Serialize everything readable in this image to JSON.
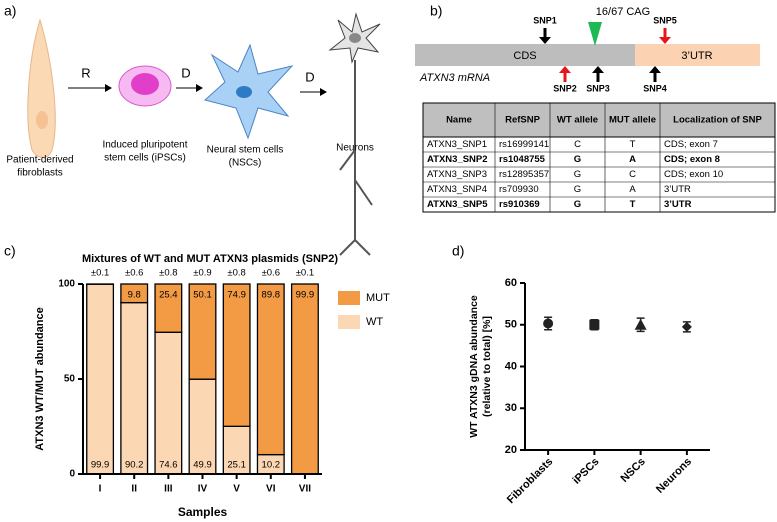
{
  "panel_a": {
    "label": "a)",
    "steps": [
      [
        "Patient-derived",
        "fibroblasts"
      ],
      [
        "Induced pluripotent",
        "stem cells (iPSCs)"
      ],
      [
        "Neural stem cells",
        "(NSCs)"
      ],
      [
        "Neurons"
      ]
    ],
    "arrows": [
      "R",
      "D",
      "D"
    ]
  },
  "panel_b": {
    "label": "b)",
    "mrna": "ATXN3 mRNA",
    "regions": [
      "CDS",
      "3’UTR"
    ],
    "cag": "16/67 CAG",
    "snps": [
      {
        "name": "SNP1",
        "color": "#000000",
        "side": "top"
      },
      {
        "name": "SNP2",
        "color": "#e8141c",
        "side": "bottom"
      },
      {
        "name": "SNP3",
        "color": "#000000",
        "side": "bottom"
      },
      {
        "name": "SNP4",
        "color": "#000000",
        "side": "bottom"
      },
      {
        "name": "SNP5",
        "color": "#e8141c",
        "side": "top"
      }
    ],
    "table": {
      "header": [
        "Name",
        "RefSNP",
        "WT allele",
        "MUT allele",
        "Localization of SNP"
      ],
      "rows": [
        [
          "ATXN3_SNP1",
          "rs16999141",
          "C",
          "T",
          "CDS; exon 7"
        ],
        [
          "ATXN3_SNP2",
          "rs1048755",
          "G",
          "A",
          "CDS; exon 8"
        ],
        [
          "ATXN3_SNP3",
          "rs12895357",
          "G",
          "C",
          "CDS; exon 10"
        ],
        [
          "ATXN3_SNP4",
          "rs709930",
          "G",
          "A",
          "3’UTR"
        ],
        [
          "ATXN3_SNP5",
          "rs910369",
          "G",
          "T",
          "3’UTR"
        ]
      ],
      "bold_rows": [
        1,
        4
      ]
    }
  },
  "chart_data": [
    {
      "type": "stacked_bar",
      "panel_label": "c)",
      "title": "Mixtures of WT and MUT ATXN3 plasmids (SNP2)",
      "xlabel": "Samples",
      "ylabel": "ATXN3 WT/MUT abundance",
      "categories": [
        "I",
        "II",
        "III",
        "IV",
        "V",
        "VI",
        "VII"
      ],
      "series": [
        {
          "name": "WT",
          "color": "#fcd7b3",
          "values": [
            99.9,
            90.2,
            74.6,
            49.9,
            25.1,
            10.2,
            0.1
          ]
        },
        {
          "name": "MUT",
          "color": "#f39a45",
          "values": [
            0.1,
            9.8,
            25.4,
            50.1,
            74.9,
            89.8,
            99.9
          ]
        }
      ],
      "errors": [
        0.1,
        0.6,
        0.8,
        0.9,
        0.8,
        0.6,
        0.1
      ],
      "error_labels": [
        "±0.1",
        "±0.6",
        "±0.8",
        "±0.9",
        "±0.8",
        "±0.6",
        "±0.1"
      ],
      "ylim": [
        0,
        100
      ],
      "yticks": [
        0,
        50,
        100
      ]
    },
    {
      "type": "point_error",
      "panel_label": "d)",
      "ylabel": [
        "WT ATXN3 gDNA abundance",
        "(relative to total) [%]"
      ],
      "categories": [
        "Fibroblasts",
        "iPSCs",
        "NSCs",
        "Neurons"
      ],
      "values": [
        50.3,
        50.0,
        50.0,
        49.5
      ],
      "errors": [
        1.5,
        1.2,
        1.6,
        1.2
      ],
      "markers": [
        "circle",
        "square",
        "triangle",
        "diamond"
      ],
      "color": "#222222",
      "ylim": [
        20,
        60
      ],
      "yticks": [
        20,
        30,
        40,
        50,
        60
      ]
    }
  ]
}
